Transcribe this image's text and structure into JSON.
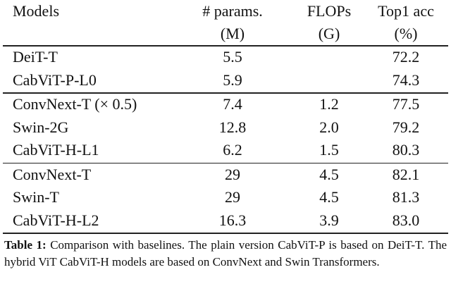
{
  "table": {
    "header": [
      [
        "Models",
        "# params.",
        "FLOPs",
        "Top1 acc"
      ],
      [
        null,
        "(M)",
        "(G)",
        "(%)"
      ]
    ],
    "groups": [
      [
        [
          "DeiT-T",
          "5.5",
          null,
          "72.2"
        ],
        [
          "CabViT-P-L0",
          "5.9",
          null,
          "74.3"
        ]
      ],
      [
        [
          "ConvNext-T (× 0.5)",
          "7.4",
          "1.2",
          "77.5"
        ],
        [
          "Swin-2G",
          "12.8",
          "2.0",
          "79.2"
        ],
        [
          "CabViT-H-L1",
          "6.2",
          "1.5",
          "80.3"
        ]
      ],
      [
        [
          "ConvNext-T",
          "29",
          "4.5",
          "82.1"
        ],
        [
          "Swin-T",
          "29",
          "4.5",
          "81.3"
        ],
        [
          "CabViT-H-L2",
          "16.3",
          "3.9",
          "83.0"
        ]
      ]
    ]
  },
  "caption": {
    "label": "Table 1:",
    "text": "Comparison with baselines. The plain version CabViT-P is based on DeiT-T. The hybrid ViT CabViT-H models are based on ConvNext and Swin Transformers."
  }
}
